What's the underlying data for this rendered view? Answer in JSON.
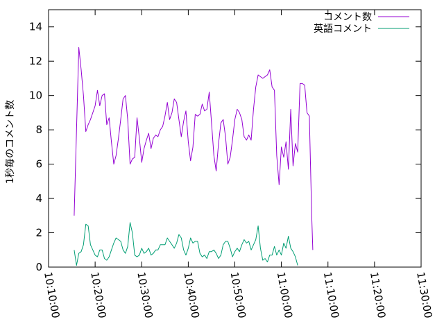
{
  "chart_data": {
    "type": "line",
    "ylabel": "1秒毎のコメント数",
    "xlabel": "",
    "title": "",
    "ylim": [
      0,
      15
    ],
    "xlim": [
      "10:10:00",
      "11:30:00"
    ],
    "y_ticks": [
      0,
      2,
      4,
      6,
      8,
      10,
      12,
      14
    ],
    "x_ticks": [
      "10:10:00",
      "10:20:00",
      "10:30:00",
      "10:40:00",
      "10:50:00",
      "11:00:00",
      "11:10:00",
      "11:20:00",
      "11:30:00"
    ],
    "legend_position": "top-right",
    "grid": false,
    "series": [
      {
        "name": "コメント数",
        "color": "#9400d3",
        "points": [
          [
            "10:15:30",
            3.0
          ],
          [
            "10:16:00",
            8.0
          ],
          [
            "10:16:30",
            12.8
          ],
          [
            "10:17:00",
            11.5
          ],
          [
            "10:17:30",
            10.0
          ],
          [
            "10:18:00",
            7.9
          ],
          [
            "10:18:30",
            8.3
          ],
          [
            "10:19:00",
            8.6
          ],
          [
            "10:19:30",
            9.0
          ],
          [
            "10:20:00",
            9.4
          ],
          [
            "10:20:30",
            10.3
          ],
          [
            "10:21:00",
            9.4
          ],
          [
            "10:21:30",
            10.0
          ],
          [
            "10:22:00",
            10.1
          ],
          [
            "10:22:30",
            8.3
          ],
          [
            "10:23:00",
            8.7
          ],
          [
            "10:23:30",
            7.3
          ],
          [
            "10:24:00",
            6.0
          ],
          [
            "10:24:30",
            6.5
          ],
          [
            "10:25:00",
            7.5
          ],
          [
            "10:25:30",
            8.6
          ],
          [
            "10:26:00",
            9.8
          ],
          [
            "10:26:30",
            10.0
          ],
          [
            "10:27:00",
            8.6
          ],
          [
            "10:27:30",
            6.0
          ],
          [
            "10:28:00",
            6.3
          ],
          [
            "10:28:30",
            6.4
          ],
          [
            "10:29:00",
            8.7
          ],
          [
            "10:29:30",
            7.5
          ],
          [
            "10:30:00",
            6.1
          ],
          [
            "10:30:30",
            6.9
          ],
          [
            "10:31:00",
            7.4
          ],
          [
            "10:31:30",
            7.8
          ],
          [
            "10:32:00",
            6.9
          ],
          [
            "10:32:30",
            7.5
          ],
          [
            "10:33:00",
            7.7
          ],
          [
            "10:33:30",
            7.6
          ],
          [
            "10:34:00",
            8.0
          ],
          [
            "10:34:30",
            8.2
          ],
          [
            "10:35:00",
            8.8
          ],
          [
            "10:35:30",
            9.6
          ],
          [
            "10:36:00",
            8.6
          ],
          [
            "10:36:30",
            9.0
          ],
          [
            "10:37:00",
            9.8
          ],
          [
            "10:37:30",
            9.6
          ],
          [
            "10:38:00",
            8.6
          ],
          [
            "10:38:30",
            7.6
          ],
          [
            "10:39:00",
            8.5
          ],
          [
            "10:39:30",
            9.1
          ],
          [
            "10:40:00",
            7.3
          ],
          [
            "10:40:30",
            6.2
          ],
          [
            "10:41:00",
            7.0
          ],
          [
            "10:41:30",
            8.9
          ],
          [
            "10:42:00",
            8.8
          ],
          [
            "10:42:30",
            8.9
          ],
          [
            "10:43:00",
            9.5
          ],
          [
            "10:43:30",
            9.1
          ],
          [
            "10:44:00",
            9.2
          ],
          [
            "10:44:30",
            10.2
          ],
          [
            "10:45:00",
            8.4
          ],
          [
            "10:45:30",
            6.5
          ],
          [
            "10:46:00",
            5.6
          ],
          [
            "10:46:30",
            7.2
          ],
          [
            "10:47:00",
            8.4
          ],
          [
            "10:47:30",
            8.6
          ],
          [
            "10:48:00",
            7.6
          ],
          [
            "10:48:30",
            6.0
          ],
          [
            "10:49:00",
            6.4
          ],
          [
            "10:49:30",
            7.4
          ],
          [
            "10:50:00",
            8.6
          ],
          [
            "10:50:30",
            9.2
          ],
          [
            "10:51:00",
            9.0
          ],
          [
            "10:51:30",
            8.6
          ],
          [
            "10:52:00",
            7.6
          ],
          [
            "10:52:30",
            7.4
          ],
          [
            "10:53:00",
            7.7
          ],
          [
            "10:53:30",
            7.4
          ],
          [
            "10:54:00",
            9.2
          ],
          [
            "10:54:30",
            10.5
          ],
          [
            "10:55:00",
            11.2
          ],
          [
            "10:55:30",
            11.1
          ],
          [
            "10:56:00",
            11.0
          ],
          [
            "10:56:30",
            11.1
          ],
          [
            "10:57:00",
            11.2
          ],
          [
            "10:57:30",
            11.5
          ],
          [
            "10:58:00",
            10.5
          ],
          [
            "10:58:30",
            10.3
          ],
          [
            "10:59:00",
            6.5
          ],
          [
            "10:59:30",
            4.8
          ],
          [
            "11:00:00",
            7.0
          ],
          [
            "11:00:30",
            6.4
          ],
          [
            "11:01:00",
            7.3
          ],
          [
            "11:01:30",
            5.7
          ],
          [
            "11:02:00",
            9.2
          ],
          [
            "11:02:30",
            5.9
          ],
          [
            "11:03:00",
            7.2
          ],
          [
            "11:03:30",
            6.7
          ],
          [
            "11:04:00",
            10.7
          ],
          [
            "11:04:30",
            10.7
          ],
          [
            "11:05:00",
            10.6
          ],
          [
            "11:05:30",
            9.0
          ],
          [
            "11:06:00",
            8.8
          ],
          [
            "11:06:30",
            3.0
          ],
          [
            "11:06:45",
            1.0
          ]
        ]
      },
      {
        "name": "英語コメント",
        "color": "#009e73",
        "points": [
          [
            "10:15:30",
            1.0
          ],
          [
            "10:16:00",
            0.1
          ],
          [
            "10:16:30",
            0.8
          ],
          [
            "10:17:00",
            0.9
          ],
          [
            "10:17:30",
            1.3
          ],
          [
            "10:18:00",
            2.5
          ],
          [
            "10:18:30",
            2.4
          ],
          [
            "10:19:00",
            1.3
          ],
          [
            "10:19:30",
            1.0
          ],
          [
            "10:20:00",
            0.7
          ],
          [
            "10:20:30",
            0.6
          ],
          [
            "10:21:00",
            1.0
          ],
          [
            "10:21:30",
            1.0
          ],
          [
            "10:22:00",
            0.5
          ],
          [
            "10:22:30",
            0.4
          ],
          [
            "10:23:00",
            0.6
          ],
          [
            "10:23:30",
            1.0
          ],
          [
            "10:24:00",
            1.4
          ],
          [
            "10:24:30",
            1.7
          ],
          [
            "10:25:00",
            1.6
          ],
          [
            "10:25:30",
            1.5
          ],
          [
            "10:26:00",
            1.0
          ],
          [
            "10:26:30",
            0.8
          ],
          [
            "10:27:00",
            1.2
          ],
          [
            "10:27:30",
            2.6
          ],
          [
            "10:28:00",
            2.0
          ],
          [
            "10:28:30",
            0.7
          ],
          [
            "10:29:00",
            0.6
          ],
          [
            "10:29:30",
            0.7
          ],
          [
            "10:30:00",
            1.1
          ],
          [
            "10:30:30",
            0.8
          ],
          [
            "10:31:00",
            0.9
          ],
          [
            "10:31:30",
            1.1
          ],
          [
            "10:32:00",
            0.7
          ],
          [
            "10:32:30",
            0.8
          ],
          [
            "10:33:00",
            1.0
          ],
          [
            "10:33:30",
            1.0
          ],
          [
            "10:34:00",
            1.3
          ],
          [
            "10:34:30",
            1.3
          ],
          [
            "10:35:00",
            1.3
          ],
          [
            "10:35:30",
            1.7
          ],
          [
            "10:36:00",
            1.5
          ],
          [
            "10:36:30",
            1.3
          ],
          [
            "10:37:00",
            1.1
          ],
          [
            "10:37:30",
            1.4
          ],
          [
            "10:38:00",
            1.9
          ],
          [
            "10:38:30",
            1.7
          ],
          [
            "10:39:00",
            1.0
          ],
          [
            "10:39:30",
            0.7
          ],
          [
            "10:40:00",
            1.1
          ],
          [
            "10:40:30",
            1.7
          ],
          [
            "10:41:00",
            1.4
          ],
          [
            "10:41:30",
            1.5
          ],
          [
            "10:42:00",
            1.5
          ],
          [
            "10:42:30",
            0.8
          ],
          [
            "10:43:00",
            0.6
          ],
          [
            "10:43:30",
            0.7
          ],
          [
            "10:44:00",
            0.5
          ],
          [
            "10:44:30",
            0.9
          ],
          [
            "10:45:00",
            0.9
          ],
          [
            "10:45:30",
            1.0
          ],
          [
            "10:46:00",
            0.8
          ],
          [
            "10:46:30",
            0.5
          ],
          [
            "10:47:00",
            0.7
          ],
          [
            "10:47:30",
            1.3
          ],
          [
            "10:48:00",
            1.5
          ],
          [
            "10:48:30",
            1.5
          ],
          [
            "10:49:00",
            1.1
          ],
          [
            "10:49:30",
            0.6
          ],
          [
            "10:50:00",
            0.9
          ],
          [
            "10:50:30",
            1.1
          ],
          [
            "10:51:00",
            0.9
          ],
          [
            "10:51:30",
            1.3
          ],
          [
            "10:52:00",
            1.6
          ],
          [
            "10:52:30",
            1.4
          ],
          [
            "10:53:00",
            1.5
          ],
          [
            "10:53:30",
            1.0
          ],
          [
            "10:54:00",
            1.3
          ],
          [
            "10:54:30",
            1.6
          ],
          [
            "10:55:00",
            2.4
          ],
          [
            "10:55:30",
            1.1
          ],
          [
            "10:56:00",
            0.4
          ],
          [
            "10:56:30",
            0.5
          ],
          [
            "10:57:00",
            0.3
          ],
          [
            "10:57:30",
            0.7
          ],
          [
            "10:58:00",
            0.7
          ],
          [
            "10:58:30",
            1.2
          ],
          [
            "10:59:00",
            0.7
          ],
          [
            "10:59:30",
            1.0
          ],
          [
            "11:00:00",
            0.7
          ],
          [
            "11:00:30",
            1.4
          ],
          [
            "11:01:00",
            1.1
          ],
          [
            "11:01:30",
            1.8
          ],
          [
            "11:02:00",
            1.1
          ],
          [
            "11:02:30",
            0.9
          ],
          [
            "11:03:00",
            0.6
          ],
          [
            "11:03:30",
            0.1
          ]
        ]
      }
    ]
  }
}
